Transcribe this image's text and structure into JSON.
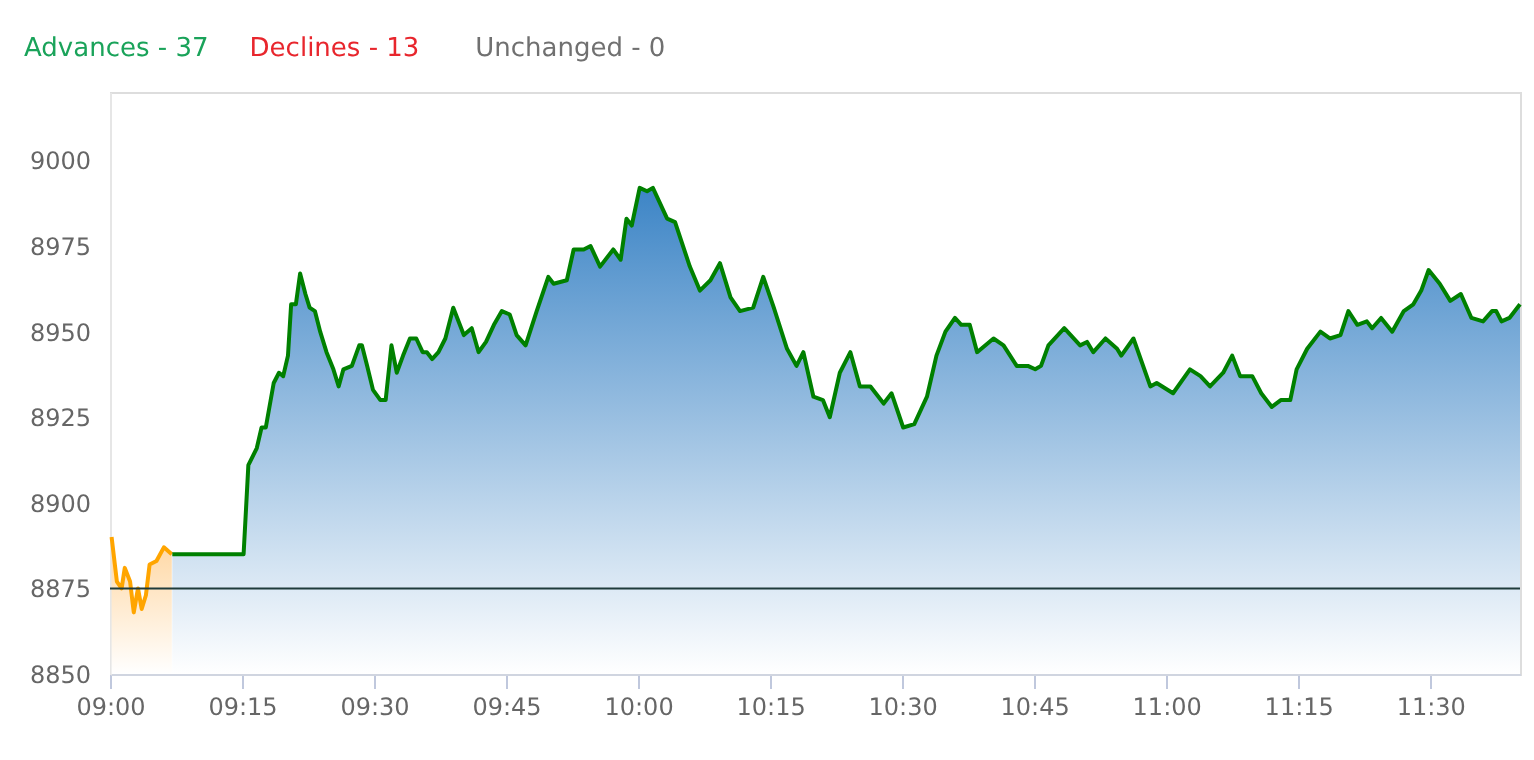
{
  "chart_data": {
    "type": "area",
    "annotations": [
      "Advances - 37",
      "Declines - 13",
      "Unchanged - 0"
    ],
    "xlim": [
      9,
      11.67
    ],
    "ylim": [
      8850,
      9020
    ],
    "xticks": [
      {
        "value": 9,
        "label": "09:00"
      },
      {
        "value": 9.25,
        "label": "09:15"
      },
      {
        "value": 9.5,
        "label": "09:30"
      },
      {
        "value": 9.75,
        "label": "09:45"
      },
      {
        "value": 10,
        "label": "10:00"
      },
      {
        "value": 10.25,
        "label": "10:15"
      },
      {
        "value": 10.5,
        "label": "10:30"
      },
      {
        "value": 10.75,
        "label": "10:45"
      },
      {
        "value": 11,
        "label": "11:00"
      },
      {
        "value": 11.25,
        "label": "11:15"
      },
      {
        "value": 11.5,
        "label": "11:30"
      }
    ],
    "yticks": [
      8850,
      8875,
      8900,
      8925,
      8950,
      8975,
      9000
    ],
    "grid": false,
    "marker": "none",
    "line_style": "solid",
    "ref_lines": [
      {
        "axis": "y",
        "value": 8875,
        "color": "#1f3b3b"
      }
    ],
    "series": [
      {
        "color": "#ffa500",
        "x": [
          9.003,
          9.013,
          9.022,
          9.028,
          9.038,
          9.045,
          9.053,
          9.06,
          9.068,
          9.075,
          9.088,
          9.102,
          9.117
        ],
        "values": [
          8890,
          8877,
          8875,
          8881,
          8877,
          8868,
          8875,
          8869,
          8873,
          8882,
          8883,
          8887,
          8885
        ]
      },
      {
        "color": "#008000",
        "x": [
          9.118,
          9.253,
          9.262,
          9.278,
          9.287,
          9.295,
          9.31,
          9.32,
          9.328,
          9.337,
          9.343,
          9.352,
          9.36,
          9.37,
          9.378,
          9.388,
          9.398,
          9.41,
          9.423,
          9.433,
          9.442,
          9.458,
          9.472,
          9.477,
          9.487,
          9.498,
          9.512,
          9.522,
          9.533,
          9.543,
          9.555,
          9.568,
          9.58,
          9.592,
          9.6,
          9.61,
          9.622,
          9.635,
          9.65,
          9.67,
          9.685,
          9.698,
          9.712,
          9.727,
          9.742,
          9.757,
          9.77,
          9.787,
          9.808,
          9.83,
          9.84,
          9.865,
          9.878,
          9.897,
          9.91,
          9.928,
          9.953,
          9.967,
          9.978,
          9.988,
          10.003,
          10.017,
          10.028,
          10.055,
          10.07,
          10.098,
          10.117,
          10.137,
          10.155,
          10.175,
          10.193,
          10.218,
          10.237,
          10.257,
          10.282,
          10.3,
          10.313,
          10.332,
          10.35,
          10.363,
          10.382,
          10.402,
          10.42,
          10.44,
          10.465,
          10.48,
          10.502,
          10.523,
          10.547,
          10.565,
          10.582,
          10.6,
          10.612,
          10.628,
          10.642,
          10.673,
          10.692,
          10.717,
          10.738,
          10.752,
          10.763,
          10.777,
          10.807,
          10.837,
          10.85,
          10.862,
          10.885,
          10.907,
          10.915,
          10.938,
          10.97,
          10.982,
          11.013,
          11.045,
          11.065,
          11.083,
          11.108,
          11.125,
          11.14,
          11.163,
          11.18,
          11.2,
          11.217,
          11.235,
          11.247,
          11.267,
          11.292,
          11.31,
          11.33,
          11.345,
          11.362,
          11.38,
          11.39,
          11.407,
          11.428,
          11.45,
          11.468,
          11.483,
          11.497,
          11.518,
          11.538,
          11.558,
          11.578,
          11.6,
          11.617,
          11.625,
          11.635,
          11.65,
          11.67
        ],
        "values": [
          8885,
          8885,
          8911,
          8916,
          8922,
          8922,
          8935,
          8938,
          8937,
          8943,
          8958,
          8958,
          8967,
          8961,
          8957,
          8956,
          8950,
          8944,
          8939,
          8934,
          8939,
          8940,
          8946,
          8946,
          8940,
          8933,
          8930,
          8930,
          8946,
          8938,
          8943,
          8948,
          8948,
          8944,
          8944,
          8942,
          8944,
          8948,
          8957,
          8949,
          8951,
          8944,
          8947,
          8952,
          8956,
          8955,
          8949,
          8946,
          8956,
          8966,
          8964,
          8965,
          8974,
          8974,
          8975,
          8969,
          8974,
          8971,
          8983,
          8981,
          8992,
          8991,
          8992,
          8983,
          8982,
          8969,
          8962,
          8965,
          8970,
          8960,
          8956,
          8957,
          8966,
          8957,
          8945,
          8940,
          8944,
          8931,
          8930,
          8925,
          8938,
          8944,
          8934,
          8934,
          8929,
          8932,
          8922,
          8923,
          8931,
          8943,
          8950,
          8954,
          8952,
          8952,
          8944,
          8948,
          8946,
          8940,
          8940,
          8939,
          8940,
          8946,
          8951,
          8946,
          8947,
          8944,
          8948,
          8945,
          8943,
          8948,
          8934,
          8935,
          8932,
          8939,
          8937,
          8934,
          8938,
          8943,
          8937,
          8937,
          8932,
          8928,
          8930,
          8930,
          8939,
          8945,
          8950,
          8948,
          8949,
          8956,
          8952,
          8953,
          8951,
          8954,
          8950,
          8956,
          8958,
          8962,
          8968,
          8964,
          8959,
          8961,
          8954,
          8953,
          8956,
          8956,
          8953,
          8954,
          8958
        ]
      }
    ]
  }
}
